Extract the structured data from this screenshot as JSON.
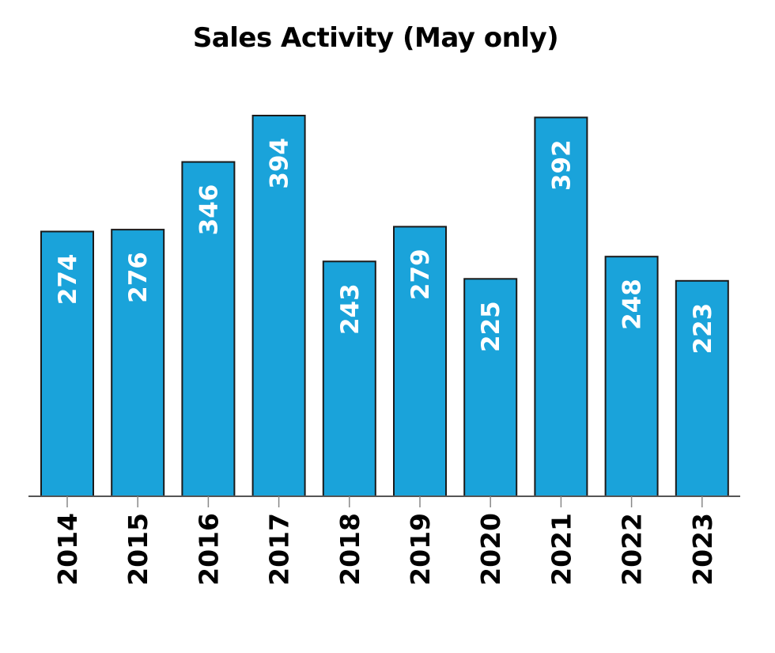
{
  "chart_data": {
    "type": "bar",
    "title": "Sales Activity (May only)",
    "xlabel": "",
    "ylabel": "",
    "categories": [
      "2014",
      "2015",
      "2016",
      "2017",
      "2018",
      "2019",
      "2020",
      "2021",
      "2022",
      "2023"
    ],
    "values": [
      274,
      276,
      346,
      394,
      243,
      279,
      225,
      392,
      248,
      223
    ],
    "ylim": [
      0,
      394
    ],
    "grid": false,
    "legend": "none",
    "colors": {
      "bar_fill": "#1aa3da",
      "bar_stroke": "#1a1a1a",
      "label": "#ffffff",
      "axis": "#555555"
    }
  }
}
